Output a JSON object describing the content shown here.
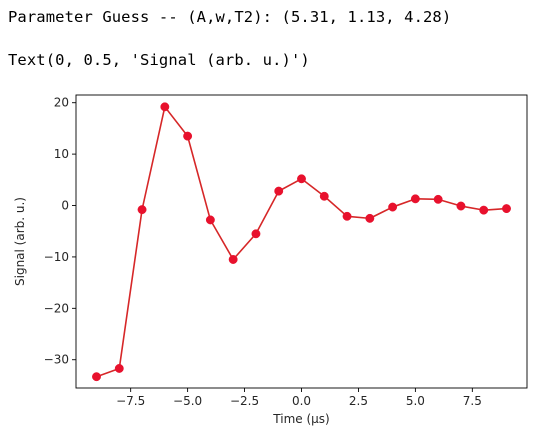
{
  "output": {
    "line1": "Parameter Guess -- (A,w,T2): (5.31, 1.13, 4.28)",
    "line2": "Text(0, 0.5, 'Signal (arb. u.)')"
  },
  "colors": {
    "series": "#d62728",
    "marker": "#e8112d",
    "axis": "#000000"
  },
  "chart_data": {
    "type": "line",
    "title": "",
    "xlabel": "Time (μs)",
    "ylabel": "Signal (arb. u.)",
    "xlim": [
      -9.9,
      9.9
    ],
    "ylim": [
      -35.5,
      21.5
    ],
    "xticks": [
      -7.5,
      -5.0,
      -2.5,
      0.0,
      2.5,
      5.0,
      7.5
    ],
    "xtick_labels": [
      "−7.5",
      "−5.0",
      "−2.5",
      "0.0",
      "2.5",
      "5.0",
      "7.5"
    ],
    "yticks": [
      -30,
      -20,
      -10,
      0,
      10,
      20
    ],
    "ytick_labels": [
      "−30",
      "−20",
      "−10",
      "0",
      "10",
      "20"
    ],
    "grid": false,
    "series": [
      {
        "marker": "circle",
        "x": [
          -9,
          -8,
          -7,
          -6,
          -5,
          -4,
          -3,
          -2,
          -1,
          0,
          1,
          2,
          3,
          4,
          5,
          6,
          7,
          8,
          9
        ],
        "y": [
          -33.3,
          -31.7,
          -0.8,
          19.2,
          13.5,
          -2.8,
          -10.5,
          -5.5,
          2.8,
          5.2,
          1.8,
          -2.1,
          -2.5,
          -0.3,
          1.3,
          1.2,
          -0.1,
          -0.9,
          -0.6
        ]
      }
    ]
  }
}
